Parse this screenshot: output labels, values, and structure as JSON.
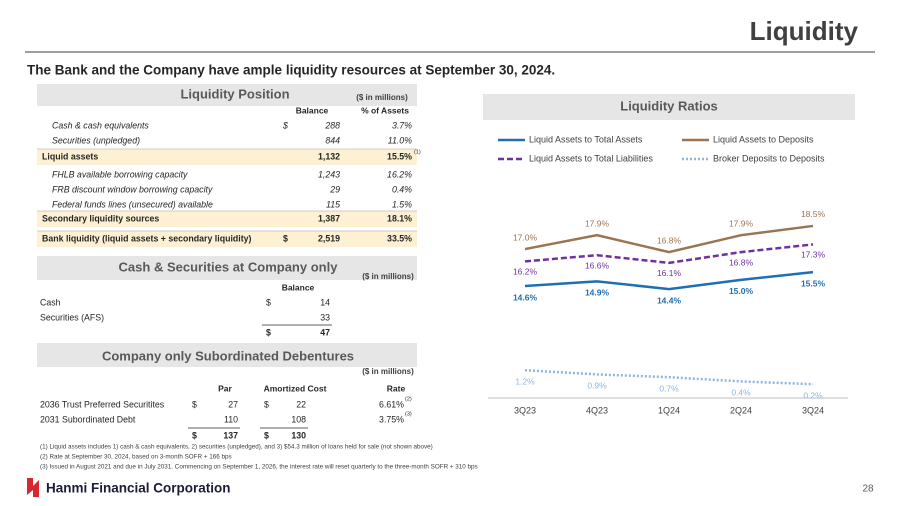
{
  "header": {
    "title": "Liquidity",
    "subtitle": "The Bank and the Company have ample liquidity resources at September 30, 2024."
  },
  "liquidity_position": {
    "title": "Liquidity Position",
    "unit_note": "($ in millions)",
    "columns": [
      "Balance",
      "% of Assets"
    ],
    "rows": [
      {
        "label": "Cash & cash equivalents",
        "currency": "$",
        "balance": "288",
        "pct": "3.7%"
      },
      {
        "label": "Securities (unpledged)",
        "balance": "844",
        "pct": "11.0%"
      },
      {
        "label": "Liquid assets",
        "balance": "1,132",
        "pct": "15.5%",
        "note": "(1)"
      },
      {
        "label": "FHLB available borrowing capacity",
        "balance": "1,243",
        "pct": "16.2%"
      },
      {
        "label": "FRB discount window borrowing capacity",
        "balance": "29",
        "pct": "0.4%"
      },
      {
        "label": "Federal funds lines (unsecured) available",
        "balance": "115",
        "pct": "1.5%"
      },
      {
        "label": "Secondary liquidity sources",
        "balance": "1,387",
        "pct": "18.1%"
      },
      {
        "label": "Bank liquidity (liquid assets + secondary liquidity)",
        "currency": "$",
        "balance": "2,519",
        "pct": "33.5%"
      }
    ]
  },
  "cash_securities": {
    "title": "Cash & Securities at Company only",
    "unit_note": "($ in millions)",
    "columns": [
      "Balance"
    ],
    "rows": [
      {
        "label": "Cash",
        "currency": "$",
        "balance": "14"
      },
      {
        "label": "Securities (AFS)",
        "balance": "33"
      }
    ],
    "total": {
      "currency": "$",
      "balance": "47"
    }
  },
  "debentures": {
    "title": "Company only Subordinated Debentures",
    "unit_note": "($ in millions)",
    "columns": [
      "Par",
      "Amortized Cost",
      "Rate"
    ],
    "rows": [
      {
        "label": "2036 Trust Preferred Securitites",
        "par_currency": "$",
        "par": "27",
        "cost_currency": "$",
        "cost": "22",
        "rate": "6.61%",
        "note": "(2)"
      },
      {
        "label": "2031 Subordinated Debt",
        "par": "110",
        "cost": "108",
        "rate": "3.75%",
        "note": "(3)"
      }
    ],
    "total": {
      "par_currency": "$",
      "par": "137",
      "cost_currency": "$",
      "cost": "130"
    }
  },
  "chart_data": {
    "type": "line",
    "title": "Liquidity Ratios",
    "categories": [
      "3Q23",
      "4Q23",
      "1Q24",
      "2Q24",
      "3Q24"
    ],
    "legend": "top",
    "series": [
      {
        "name": "Liquid Assets to Total Assets",
        "color": "#1f6fb3",
        "dash": "solid",
        "values": [
          14.6,
          14.9,
          14.4,
          15.0,
          15.5
        ],
        "value_labels": [
          "14.6%",
          "14.9%",
          "14.4%",
          "15.0%",
          "15.5%"
        ]
      },
      {
        "name": "Liquid Assets to Deposits",
        "color": "#9b7452",
        "dash": "solid",
        "values": [
          17.0,
          17.9,
          16.8,
          17.9,
          18.5
        ],
        "value_labels": [
          "17.0%",
          "17.9%",
          "16.8%",
          "17.9%",
          "18.5%"
        ]
      },
      {
        "name": "Liquid Assets to Total Liabilities",
        "color": "#7030a0",
        "dash": "dashed",
        "values": [
          16.2,
          16.6,
          16.1,
          16.8,
          17.3
        ],
        "value_labels": [
          "16.2%",
          "16.6%",
          "16.1%",
          "16.8%",
          "17.3%"
        ]
      },
      {
        "name": "Broker Deposits to Deposits",
        "color": "#8db4e2",
        "dash": "dotted",
        "values": [
          1.2,
          0.9,
          0.7,
          0.4,
          0.2
        ],
        "value_labels": [
          "1.2%",
          "0.9%",
          "0.7%",
          "0.4%",
          "0.2%"
        ]
      }
    ]
  },
  "footnotes": [
    "(1)   Liquid assets includes 1) cash & cash equivalents, 2) securities (unpledged), and 3) $54.3 million of loans held for sale (not shown above)",
    "(2)   Rate at September 30, 2024, based on 3-month SOFR + 166 bps",
    "(3)   Issued in August 2021 and due in July 2031. Commencing on September 1, 2026, the interest rate will reset quarterly to the three-month SOFR + 310 bps"
  ],
  "footer": {
    "company": "Hanmi Financial Corporation",
    "page": "28"
  }
}
